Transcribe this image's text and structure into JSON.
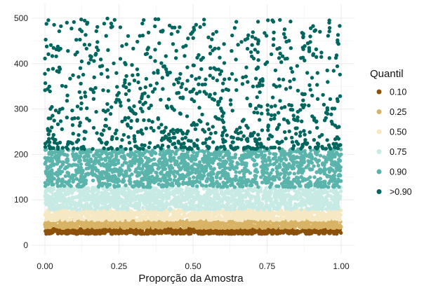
{
  "chart_data": {
    "type": "scatter",
    "title": "",
    "xlabel": "Proporção da Amostra",
    "ylabel": "",
    "xlim": [
      0,
      1
    ],
    "ylim": [
      0,
      500
    ],
    "x_ticks": [
      "0.00",
      "0.25",
      "0.50",
      "0.75",
      "1.00"
    ],
    "x_tick_values": [
      0,
      0.25,
      0.5,
      0.75,
      1
    ],
    "y_ticks": [
      "0",
      "100",
      "200",
      "300",
      "400",
      "500"
    ],
    "y_tick_values": [
      0,
      100,
      200,
      300,
      400,
      500
    ],
    "grid": true,
    "legend_title": "Quantil",
    "legend_position": "right",
    "series": [
      {
        "name": "0.10",
        "color": "#8c510a",
        "y_range": [
          25,
          38
        ],
        "n_points": 900
      },
      {
        "name": "0.25",
        "color": "#d8b365",
        "y_range": [
          38,
          55
        ],
        "n_points": 900
      },
      {
        "name": "0.50",
        "color": "#f6e8c3",
        "y_range": [
          55,
          78
        ],
        "n_points": 900
      },
      {
        "name": "0.75",
        "color": "#c7eae5",
        "y_range": [
          78,
          128
        ],
        "n_points": 1400
      },
      {
        "name": "0.90",
        "color": "#5ab4ac",
        "y_range": [
          128,
          212
        ],
        "n_points": 1500
      },
      {
        "name": ">0.90",
        "color": "#01665e",
        "y_range": [
          212,
          500
        ],
        "n_points": 900
      }
    ],
    "note_on_values": "Each series is a dense band of points spread uniformly over x from 0 to 1; y values fall within the listed range, with the >0.90 series becoming sparser toward 500."
  }
}
